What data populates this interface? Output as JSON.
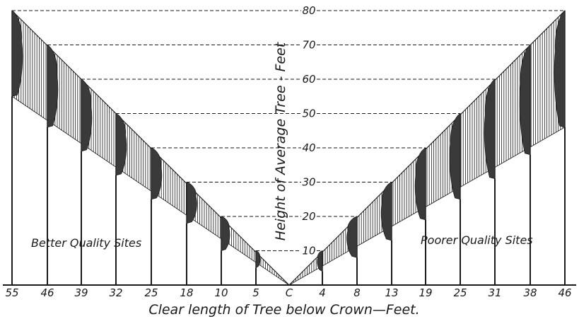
{
  "chart_data": {
    "type": "diagram",
    "y_axis_title": "Height of Average Tree - Feet",
    "x_axis_title": "Clear length of Tree below Crown—Feet.",
    "y_range": [
      0,
      80
    ],
    "y_ticks": [
      10,
      20,
      30,
      40,
      50,
      60,
      70,
      80
    ],
    "left_label": "Better Quality Sites",
    "right_label": "Poorer Quality Sites",
    "center_tick": "C",
    "better_sites": {
      "heights": [
        80,
        70,
        60,
        50,
        40,
        30,
        20,
        10
      ],
      "clear_lengths": [
        55,
        46,
        39,
        32,
        25,
        18,
        10,
        5
      ],
      "tick_labels": [
        "55",
        "46",
        "39",
        "32",
        "25",
        "18",
        "10",
        "5"
      ]
    },
    "poorer_sites": {
      "heights": [
        10,
        20,
        30,
        40,
        50,
        60,
        70,
        80
      ],
      "clear_lengths": [
        4,
        8,
        13,
        19,
        25,
        31,
        38,
        46
      ],
      "tick_labels": [
        "4",
        "8",
        "13",
        "19",
        "25",
        "31",
        "38",
        "46"
      ]
    },
    "colors": {
      "ink": "#1a1a1a",
      "crown": "#3a3a3a",
      "background": "#ffffff"
    }
  }
}
